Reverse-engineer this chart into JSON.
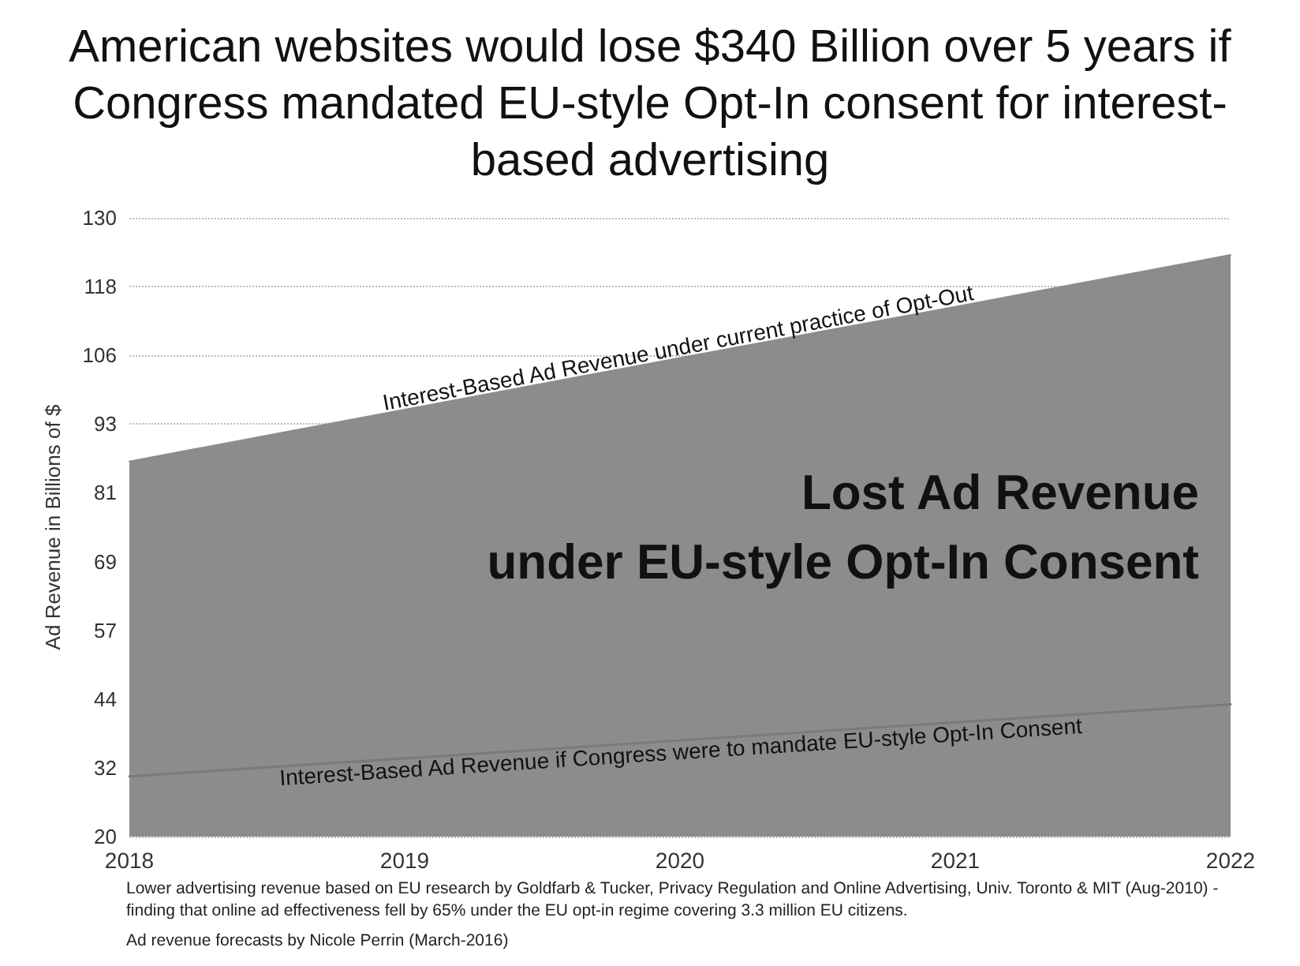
{
  "chart_data": {
    "type": "area",
    "title": "American websites would lose $340 Billion over 5 years if Congress mandated EU-style Opt-In consent for interest-based advertising",
    "ylabel": "Ad Revenue in Billions of $",
    "x": [
      2018,
      2019,
      2020,
      2021,
      2022
    ],
    "series": [
      {
        "name": "Interest-Based Ad Revenue under current practice of Opt-Out",
        "color": "#8c8c8c",
        "values": [
          86.7,
          95.9,
          105.1,
          114.2,
          123.4
        ]
      },
      {
        "name": "Interest-Based Ad Revenue if Congress were to mandate EU-style Opt-In Consent",
        "color": "#7a7a7a",
        "type": "line",
        "values": [
          30.7,
          33.9,
          37.1,
          40.3,
          43.5
        ]
      }
    ],
    "xlim": [
      2018,
      2022
    ],
    "xticks": [
      2018,
      2019,
      2020,
      2021,
      2022
    ],
    "ylim": [
      20,
      130
    ],
    "yticks": [
      20,
      {
        "value": 32.22,
        "label": "32"
      },
      {
        "value": 44.44,
        "label": "44"
      },
      {
        "value": 56.67,
        "label": "57"
      },
      {
        "value": 68.89,
        "label": "69"
      },
      {
        "value": 81.11,
        "label": "81"
      },
      {
        "value": 93.33,
        "label": "93"
      },
      {
        "value": 105.56,
        "label": "106"
      },
      {
        "value": 117.78,
        "label": "118"
      },
      130
    ],
    "grid": "y",
    "legend": false,
    "marker": "none",
    "annotations": [
      {
        "text": "Lost Ad Revenue\nunder EU-style Opt-In Consent",
        "x": 2022,
        "y": 75
      },
      "Lower advertising revenue based on EU research by Goldfarb & Tucker, Privacy Regulation and Online Advertising, Univ. Toronto & MIT (Aug-2010) - finding that online ad effectiveness fell by 65% under the EU opt-in regime covering 3.3 million EU citizens.",
      "Ad revenue forecasts by Nicole Perrin (March-2016)"
    ]
  }
}
